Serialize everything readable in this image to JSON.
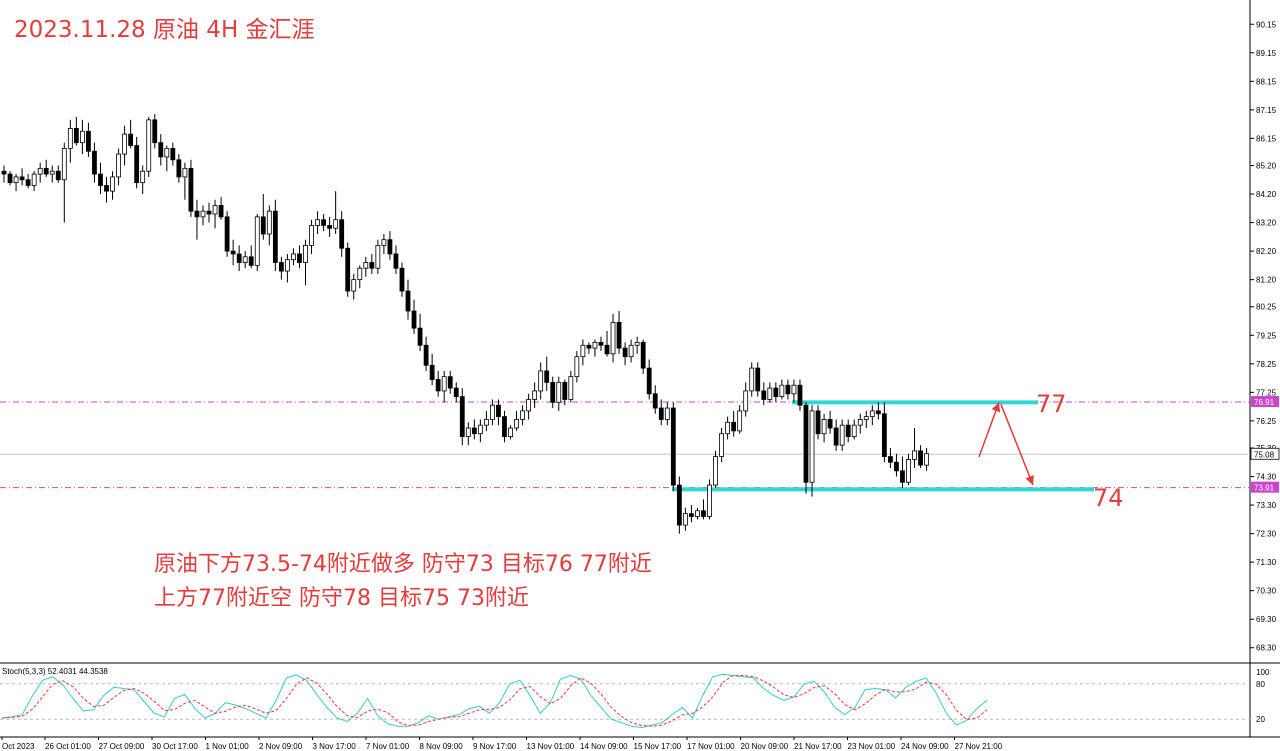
{
  "annotation": {
    "title": "2023.11.28 原油 4H 金汇涯",
    "note_line1": "原油下方73.5-74附近做多 防守73 目标76 77附近",
    "note_line2": "上方77附近空 防守78 目标75 73附近",
    "level_high_label": "77",
    "level_low_label": "74"
  },
  "colors": {
    "bull": "#ffffff",
    "bear": "#000000",
    "level_line": "#33d6d6",
    "dashed_level": "#cc44cc",
    "annotation": "#e63b3b",
    "stoch_main": "#33cccc",
    "stoch_signal": "#ff3333",
    "price_box_level": "#cc44cc"
  },
  "chart_data": {
    "type": "candlestick",
    "timeframe": "4H",
    "ylim": [
      67.8,
      91.0
    ],
    "y_ticks": [
      "90.15",
      "89.15",
      "88.15",
      "87.15",
      "86.15",
      "85.20",
      "84.20",
      "83.20",
      "82.20",
      "81.20",
      "80.25",
      "79.25",
      "78.25",
      "77.25",
      "76.25",
      "75.30",
      "74.30",
      "73.30",
      "72.30",
      "71.30",
      "70.30",
      "69.30",
      "68.30"
    ],
    "x_ticks": [
      "Oct 2023",
      "26 Oct 01:00",
      "27 Oct 09:00",
      "30 Oct 17:00",
      "1 Nov 01:00",
      "2 Nov 09:00",
      "3 Nov 17:00",
      "7 Nov 01:00",
      "8 Nov 09:00",
      "9 Nov 17:00",
      "13 Nov 01:00",
      "14 Nov 09:00",
      "15 Nov 17:00",
      "17 Nov 01:00",
      "20 Nov 09:00",
      "21 Nov 17:00",
      "23 Nov 01:00",
      "24 Nov 09:00",
      "27 Nov 21:00"
    ],
    "current_price": "75.08",
    "dashed_levels": [
      "76.91",
      "73.91"
    ],
    "candles": [
      [
        85.0,
        85.2,
        84.6,
        84.9
      ],
      [
        84.9,
        85.0,
        84.5,
        84.6
      ],
      [
        84.6,
        84.9,
        84.3,
        84.8
      ],
      [
        84.8,
        85.1,
        84.5,
        84.7
      ],
      [
        84.7,
        84.9,
        84.4,
        84.5
      ],
      [
        84.5,
        85.0,
        84.3,
        84.9
      ],
      [
        84.9,
        85.3,
        84.6,
        85.1
      ],
      [
        85.1,
        85.4,
        84.8,
        84.9
      ],
      [
        84.9,
        85.2,
        84.6,
        85.0
      ],
      [
        85.0,
        85.2,
        84.6,
        84.7
      ],
      [
        84.7,
        86.0,
        83.2,
        85.8
      ],
      [
        85.8,
        86.8,
        85.3,
        86.5
      ],
      [
        86.5,
        86.9,
        85.9,
        86.0
      ],
      [
        86.0,
        86.8,
        85.6,
        86.4
      ],
      [
        86.4,
        86.7,
        85.5,
        85.7
      ],
      [
        85.7,
        86.0,
        84.6,
        84.9
      ],
      [
        84.9,
        85.3,
        84.2,
        84.5
      ],
      [
        84.5,
        84.8,
        83.9,
        84.3
      ],
      [
        84.3,
        85.0,
        84.0,
        84.8
      ],
      [
        84.8,
        85.8,
        84.5,
        85.6
      ],
      [
        85.6,
        86.6,
        85.2,
        86.3
      ],
      [
        86.3,
        86.8,
        85.8,
        85.9
      ],
      [
        85.9,
        86.2,
        84.4,
        84.6
      ],
      [
        84.6,
        85.2,
        84.2,
        85.0
      ],
      [
        85.0,
        86.9,
        84.8,
        86.8
      ],
      [
        86.8,
        87.0,
        85.8,
        86.0
      ],
      [
        86.0,
        86.3,
        85.2,
        85.5
      ],
      [
        85.5,
        85.9,
        85.0,
        85.8
      ],
      [
        85.8,
        86.0,
        85.2,
        85.4
      ],
      [
        85.4,
        85.6,
        84.6,
        84.8
      ],
      [
        84.8,
        85.3,
        84.0,
        85.1
      ],
      [
        85.1,
        85.4,
        83.4,
        83.6
      ],
      [
        83.6,
        84.0,
        82.6,
        83.4
      ],
      [
        83.4,
        83.8,
        83.1,
        83.6
      ],
      [
        83.6,
        83.9,
        83.2,
        83.5
      ],
      [
        83.5,
        84.0,
        83.0,
        83.8
      ],
      [
        83.8,
        84.1,
        83.3,
        83.4
      ],
      [
        83.4,
        83.6,
        82.0,
        82.2
      ],
      [
        82.2,
        82.6,
        81.7,
        82.1
      ],
      [
        82.1,
        82.4,
        81.5,
        81.8
      ],
      [
        81.8,
        82.2,
        81.6,
        82.0
      ],
      [
        82.0,
        82.4,
        81.6,
        81.7
      ],
      [
        81.7,
        83.5,
        81.5,
        83.4
      ],
      [
        83.4,
        84.2,
        82.6,
        82.8
      ],
      [
        82.8,
        83.8,
        82.4,
        83.6
      ],
      [
        83.6,
        84.0,
        81.5,
        81.8
      ],
      [
        81.8,
        82.0,
        81.2,
        81.5
      ],
      [
        81.5,
        82.1,
        81.1,
        81.9
      ],
      [
        81.9,
        82.3,
        81.7,
        82.1
      ],
      [
        82.1,
        82.4,
        81.6,
        81.8
      ],
      [
        81.8,
        82.6,
        81.0,
        82.4
      ],
      [
        82.4,
        83.3,
        82.1,
        83.1
      ],
      [
        83.1,
        83.6,
        82.8,
        83.3
      ],
      [
        83.3,
        83.5,
        82.9,
        83.1
      ],
      [
        83.1,
        83.4,
        82.7,
        83.0
      ],
      [
        83.0,
        84.3,
        82.8,
        83.3
      ],
      [
        83.3,
        83.6,
        82.0,
        82.3
      ],
      [
        82.3,
        82.5,
        80.6,
        80.8
      ],
      [
        80.8,
        81.4,
        80.5,
        81.2
      ],
      [
        81.2,
        81.7,
        80.9,
        81.6
      ],
      [
        81.6,
        82.0,
        81.3,
        81.8
      ],
      [
        81.8,
        82.1,
        81.4,
        81.6
      ],
      [
        81.6,
        82.6,
        81.4,
        82.4
      ],
      [
        82.4,
        82.8,
        82.1,
        82.6
      ],
      [
        82.6,
        82.9,
        81.9,
        82.1
      ],
      [
        82.1,
        82.4,
        81.4,
        81.6
      ],
      [
        81.6,
        81.8,
        80.6,
        80.8
      ],
      [
        80.8,
        81.2,
        79.8,
        80.1
      ],
      [
        80.1,
        80.5,
        79.3,
        79.5
      ],
      [
        79.5,
        80.0,
        78.7,
        78.9
      ],
      [
        78.9,
        79.2,
        78.0,
        78.2
      ],
      [
        78.2,
        78.6,
        77.5,
        77.7
      ],
      [
        77.7,
        78.0,
        77.1,
        77.3
      ],
      [
        77.3,
        78.0,
        76.9,
        77.8
      ],
      [
        77.8,
        78.0,
        77.2,
        77.4
      ],
      [
        77.4,
        77.6,
        76.9,
        77.1
      ],
      [
        77.1,
        77.4,
        75.4,
        75.7
      ],
      [
        75.7,
        76.2,
        75.4,
        76.0
      ],
      [
        76.0,
        76.3,
        75.6,
        75.8
      ],
      [
        75.8,
        76.3,
        75.5,
        76.1
      ],
      [
        76.1,
        76.6,
        75.9,
        76.3
      ],
      [
        76.3,
        77.0,
        76.1,
        76.8
      ],
      [
        76.8,
        77.0,
        76.1,
        76.4
      ],
      [
        76.4,
        76.6,
        75.5,
        75.7
      ],
      [
        75.7,
        76.1,
        75.6,
        76.0
      ],
      [
        76.0,
        76.6,
        75.9,
        76.3
      ],
      [
        76.3,
        76.8,
        76.1,
        76.6
      ],
      [
        76.6,
        77.2,
        76.3,
        77.0
      ],
      [
        77.0,
        77.6,
        76.7,
        77.3
      ],
      [
        77.3,
        78.3,
        77.0,
        78.0
      ],
      [
        78.0,
        78.5,
        77.3,
        77.6
      ],
      [
        77.6,
        77.8,
        76.7,
        76.9
      ],
      [
        76.9,
        77.8,
        76.6,
        77.6
      ],
      [
        77.6,
        77.7,
        76.8,
        77.0
      ],
      [
        77.0,
        78.0,
        76.9,
        77.8
      ],
      [
        77.8,
        78.7,
        77.6,
        78.5
      ],
      [
        78.5,
        79.1,
        78.2,
        78.9
      ],
      [
        78.9,
        79.0,
        78.6,
        78.8
      ],
      [
        78.8,
        79.1,
        78.5,
        79.0
      ],
      [
        79.0,
        79.2,
        78.7,
        78.9
      ],
      [
        78.9,
        79.4,
        78.5,
        78.6
      ],
      [
        78.6,
        80.0,
        78.3,
        79.7
      ],
      [
        79.7,
        80.1,
        78.6,
        78.8
      ],
      [
        78.8,
        79.0,
        78.2,
        78.5
      ],
      [
        78.5,
        79.1,
        78.3,
        78.9
      ],
      [
        78.9,
        79.2,
        78.6,
        79.0
      ],
      [
        79.0,
        79.1,
        77.9,
        78.1
      ],
      [
        78.1,
        78.4,
        77.0,
        77.2
      ],
      [
        77.2,
        77.5,
        76.5,
        76.7
      ],
      [
        76.7,
        77.0,
        76.1,
        76.3
      ],
      [
        76.3,
        76.9,
        76.1,
        76.7
      ],
      [
        76.7,
        76.9,
        73.8,
        74.0
      ],
      [
        74.0,
        74.3,
        72.3,
        72.6
      ],
      [
        72.6,
        73.2,
        72.4,
        73.0
      ],
      [
        73.0,
        73.3,
        72.7,
        72.9
      ],
      [
        72.9,
        73.2,
        72.8,
        73.1
      ],
      [
        73.1,
        73.5,
        72.8,
        72.9
      ],
      [
        72.9,
        74.2,
        72.8,
        74.0
      ],
      [
        74.0,
        75.2,
        73.9,
        75.0
      ],
      [
        75.0,
        76.0,
        74.8,
        75.8
      ],
      [
        75.8,
        76.4,
        75.6,
        76.2
      ],
      [
        76.2,
        76.6,
        75.7,
        75.9
      ],
      [
        75.9,
        76.8,
        75.8,
        76.6
      ],
      [
        76.6,
        77.6,
        76.4,
        77.3
      ],
      [
        77.3,
        78.3,
        77.1,
        78.1
      ],
      [
        78.1,
        78.3,
        77.1,
        77.3
      ],
      [
        77.3,
        77.6,
        76.8,
        77.0
      ],
      [
        77.0,
        77.6,
        76.9,
        77.4
      ],
      [
        77.4,
        77.6,
        76.9,
        77.1
      ],
      [
        77.1,
        77.7,
        77.0,
        77.5
      ],
      [
        77.5,
        77.7,
        77.0,
        77.2
      ],
      [
        77.2,
        77.7,
        76.9,
        77.5
      ],
      [
        77.5,
        77.7,
        76.6,
        76.8
      ],
      [
        76.8,
        76.9,
        73.7,
        74.1
      ],
      [
        74.1,
        76.8,
        73.6,
        76.6
      ],
      [
        76.6,
        76.8,
        75.6,
        75.8
      ],
      [
        75.8,
        76.5,
        75.5,
        76.3
      ],
      [
        76.3,
        76.6,
        75.8,
        76.0
      ],
      [
        76.0,
        76.3,
        75.2,
        75.4
      ],
      [
        75.4,
        76.3,
        75.2,
        76.1
      ],
      [
        76.1,
        76.3,
        75.5,
        75.7
      ],
      [
        75.7,
        76.3,
        75.6,
        76.1
      ],
      [
        76.1,
        76.5,
        75.8,
        76.3
      ],
      [
        76.3,
        76.6,
        76.0,
        76.4
      ],
      [
        76.4,
        76.8,
        76.1,
        76.6
      ],
      [
        76.6,
        76.9,
        76.3,
        76.5
      ],
      [
        76.5,
        76.9,
        74.8,
        75.0
      ],
      [
        75.0,
        75.3,
        74.6,
        74.8
      ],
      [
        74.8,
        75.1,
        74.3,
        74.5
      ],
      [
        74.5,
        75.0,
        73.9,
        74.1
      ],
      [
        74.1,
        75.1,
        74.0,
        74.9
      ],
      [
        74.9,
        76.0,
        74.6,
        75.2
      ],
      [
        75.2,
        75.4,
        74.6,
        74.7
      ],
      [
        74.7,
        75.3,
        74.5,
        75.1
      ]
    ],
    "horizontal_levels": [
      {
        "label": "77",
        "price": 76.9
      },
      {
        "label": "74",
        "price": 73.85
      }
    ],
    "arrow_path": [
      [
        76.95,
        74.99
      ],
      [
        76.9,
        76.9
      ],
      [
        73.95,
        74.0
      ]
    ],
    "stochastic": {
      "label": "Stoch(5,3,3) 52.4031 44.3538",
      "params": "(5,3,3)",
      "main_value": "52.4031",
      "signal_value": "44.3538",
      "levels": [
        "100",
        "80",
        "20",
        "0"
      ],
      "main": [
        22,
        24,
        28,
        60,
        86,
        92,
        78,
        55,
        34,
        36,
        60,
        74,
        72,
        70,
        50,
        30,
        24,
        55,
        62,
        38,
        22,
        30,
        48,
        44,
        38,
        30,
        22,
        52,
        90,
        95,
        86,
        62,
        40,
        22,
        16,
        30,
        55,
        26,
        12,
        8,
        8,
        14,
        26,
        20,
        24,
        28,
        38,
        42,
        30,
        48,
        80,
        86,
        60,
        30,
        48,
        88,
        94,
        88,
        60,
        40,
        20,
        14,
        8,
        6,
        10,
        14,
        28,
        40,
        22,
        60,
        92,
        96,
        94,
        92,
        90,
        72,
        60,
        52,
        58,
        80,
        84,
        66,
        40,
        28,
        40,
        70,
        72,
        70,
        56,
        74,
        84,
        90,
        64,
        30,
        10,
        18,
        38,
        52
      ]
    }
  }
}
